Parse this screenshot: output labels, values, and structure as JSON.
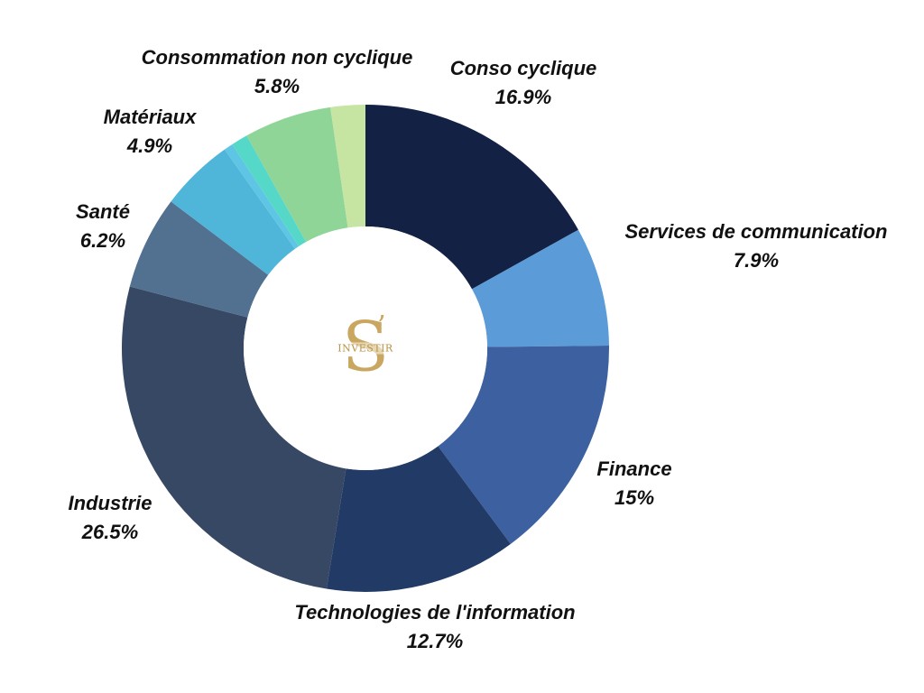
{
  "chart_data": {
    "type": "pie",
    "donut": true,
    "title": "",
    "logo": {
      "word": "INVESTIR"
    },
    "slices": [
      {
        "label": "Conso cyclique",
        "value": 16.9,
        "value_label": "16.9%",
        "color": "#132244"
      },
      {
        "label": "Services de communication",
        "value": 7.9,
        "value_label": "7.9%",
        "color": "#5b9bd8"
      },
      {
        "label": "Finance",
        "value": 15,
        "value_label": "15%",
        "color": "#3d61a0"
      },
      {
        "label": "Technologies de l'information",
        "value": 12.7,
        "value_label": "12.7%",
        "color": "#223b66"
      },
      {
        "label": "Industrie",
        "value": 26.5,
        "value_label": "26.5%",
        "color": "#374864"
      },
      {
        "label": "Santé",
        "value": 6.2,
        "value_label": "6.2%",
        "color": "#52708f"
      },
      {
        "label": "Matériaux",
        "value": 4.9,
        "value_label": "4.9%",
        "color": "#4fb6da"
      },
      {
        "label": "",
        "value": 0.6,
        "value_label": "",
        "color": "#5ec6e4"
      },
      {
        "label": "",
        "value": 1.1,
        "value_label": "",
        "color": "#56d8c8"
      },
      {
        "label": "Consommation non cyclique",
        "value": 5.8,
        "value_label": "5.8%",
        "color": "#8fd597"
      },
      {
        "label": "",
        "value": 2.3,
        "value_label": "",
        "color": "#c6e4a2"
      }
    ]
  }
}
